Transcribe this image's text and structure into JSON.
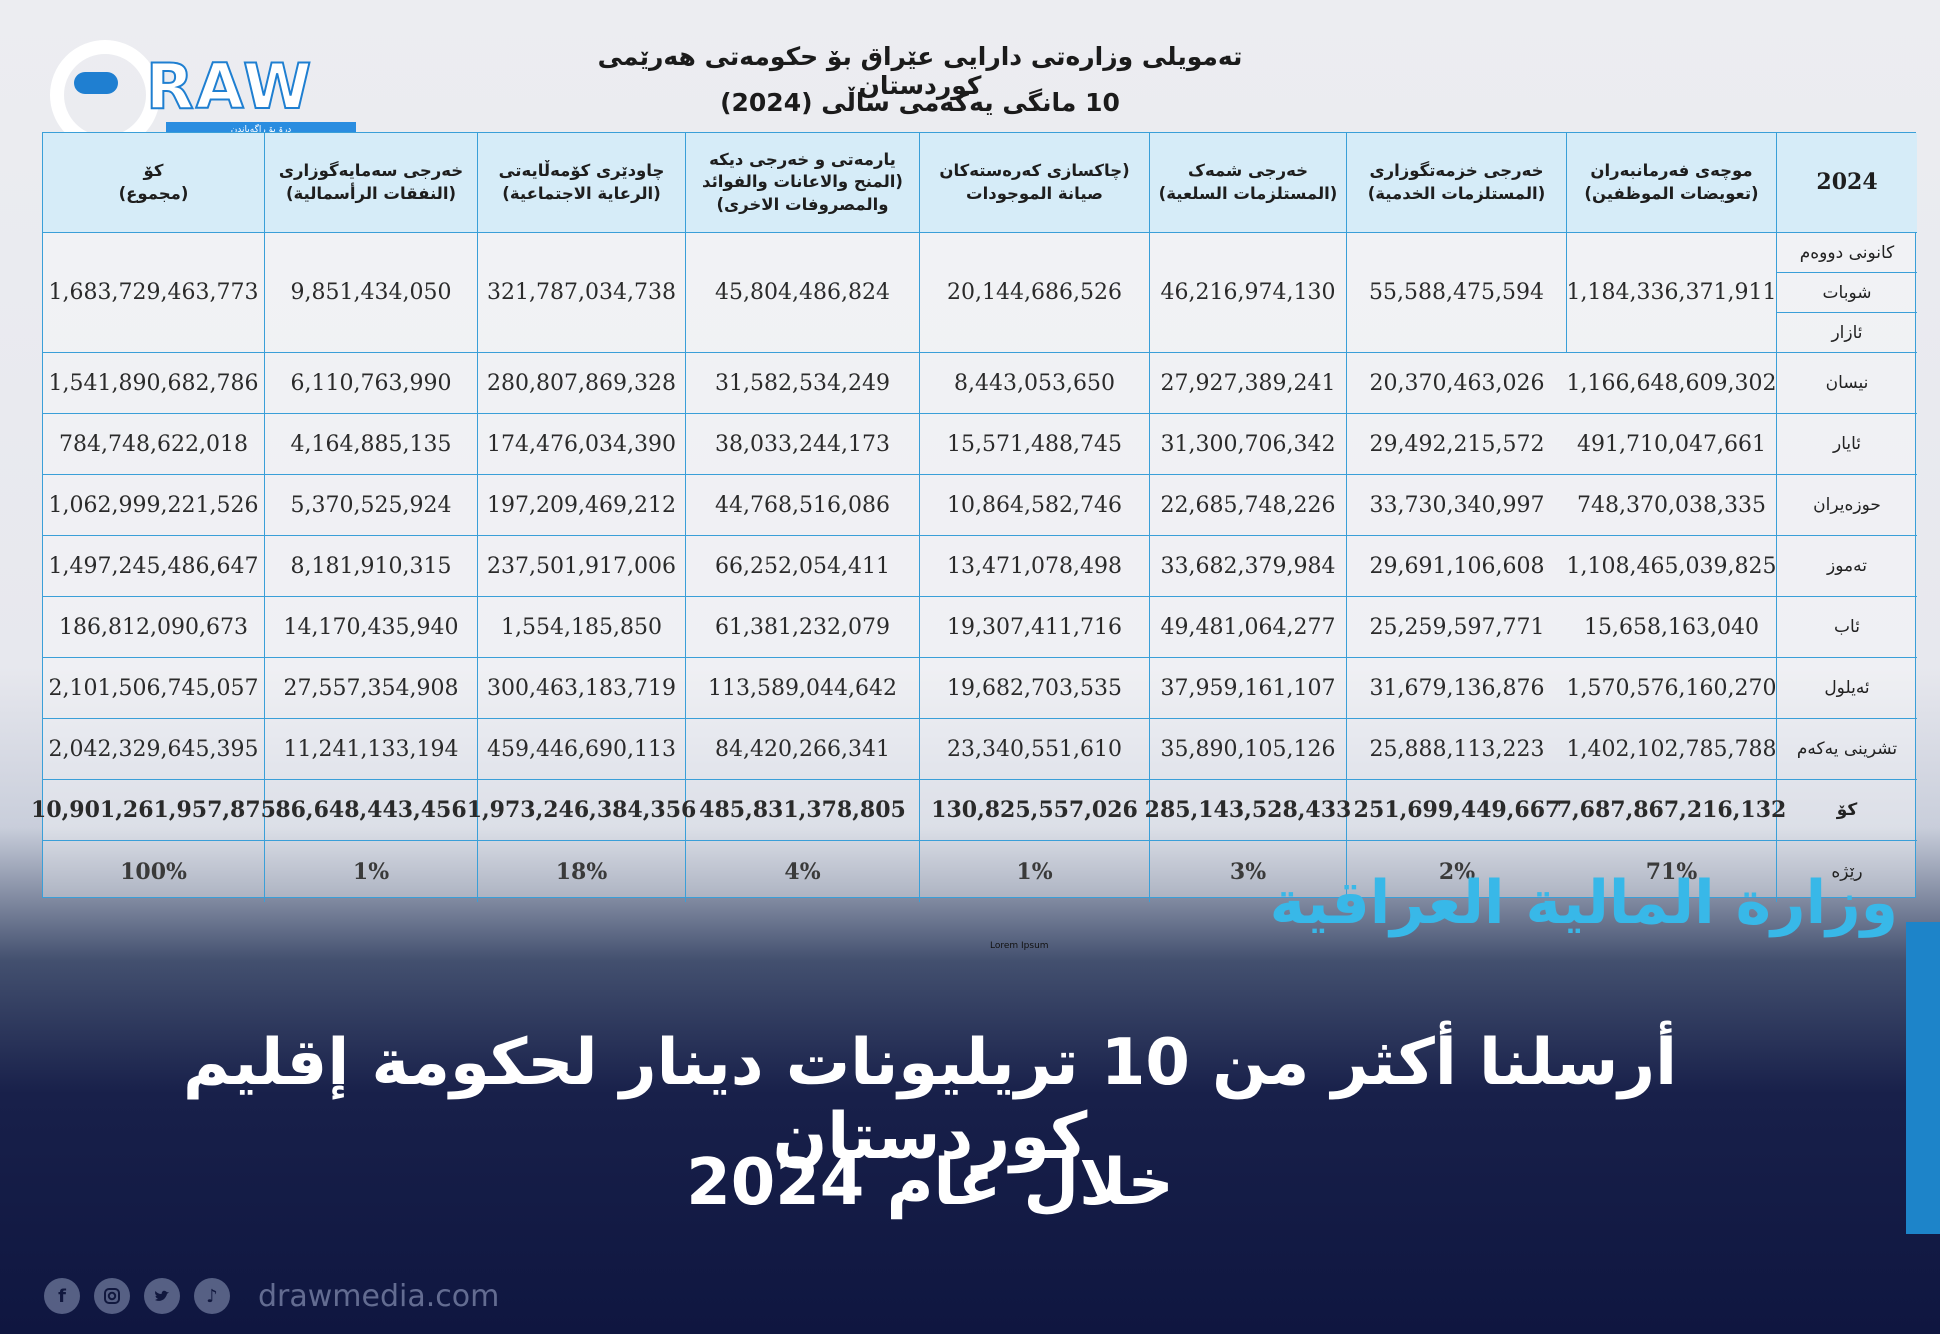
{
  "logo": {
    "wordmark": "RAW",
    "sub": "درۆ بۆ راگەیاندن"
  },
  "title_line1": "تەمویلی وزارەتی دارایی عێراق بۆ حکومەتی هەرێمی کوردستان",
  "title_line2": "10 مانگی یەکەمی ساڵی (2024)",
  "table": {
    "headers": [
      "کۆ\n(مجموع)",
      "خەرجی سەمایەگوزاری\n(النفقات الرأسمالية)",
      "چاودێری کۆمەڵایەتی\n(الرعاية الاجتماعية)",
      "یارمەتی و خەرجی دیکە\n(المنح والاعانات والفوائد\nوالمصروفات الاخرى)",
      "(چاکسازی کەرەستەکان\nصيانة الموجودات",
      "خەرجی شمەک\n(المستلزمات السلعية)",
      "خەرجی خزمەتگوزاری\n(المستلزمات الخدمية)",
      "موچەی فەرمانبەران\n(تعويضات الموظفين)",
      "2024"
    ],
    "q1_months": [
      "کانونی دووەم",
      "شوبات",
      "ئازار"
    ],
    "q1_values": [
      "1,683,729,463,773",
      "9,851,434,050",
      "321,787,034,738",
      "45,804,486,824",
      "20,144,686,526",
      "46,216,974,130",
      "55,588,475,594",
      "1,184,336,371,911"
    ],
    "rows": [
      {
        "month": "نیسان",
        "values": [
          "1,541,890,682,786",
          "6,110,763,990",
          "280,807,869,328",
          "31,582,534,249",
          "8,443,053,650",
          "27,927,389,241",
          "20,370,463,026",
          "1,166,648,609,302"
        ]
      },
      {
        "month": "ئایار",
        "values": [
          "784,748,622,018",
          "4,164,885,135",
          "174,476,034,390",
          "38,033,244,173",
          "15,571,488,745",
          "31,300,706,342",
          "29,492,215,572",
          "491,710,047,661"
        ]
      },
      {
        "month": "حوزەیران",
        "values": [
          "1,062,999,221,526",
          "5,370,525,924",
          "197,209,469,212",
          "44,768,516,086",
          "10,864,582,746",
          "22,685,748,226",
          "33,730,340,997",
          "748,370,038,335"
        ]
      },
      {
        "month": "تەموز",
        "values": [
          "1,497,245,486,647",
          "8,181,910,315",
          "237,501,917,006",
          "66,252,054,411",
          "13,471,078,498",
          "33,682,379,984",
          "29,691,106,608",
          "1,108,465,039,825"
        ]
      },
      {
        "month": "ئاب",
        "values": [
          "186,812,090,673",
          "14,170,435,940",
          "1,554,185,850",
          "61,381,232,079",
          "19,307,411,716",
          "49,481,064,277",
          "25,259,597,771",
          "15,658,163,040"
        ]
      },
      {
        "month": "ئەیلول",
        "values": [
          "2,101,506,745,057",
          "27,557,354,908",
          "300,463,183,719",
          "113,589,044,642",
          "19,682,703,535",
          "37,959,161,107",
          "31,679,136,876",
          "1,570,576,160,270"
        ]
      },
      {
        "month": "تشرینی یەکەم",
        "values": [
          "2,042,329,645,395",
          "11,241,133,194",
          "459,446,690,113",
          "84,420,266,341",
          "23,340,551,610",
          "35,890,105,126",
          "25,888,113,223",
          "1,402,102,785,788"
        ]
      }
    ],
    "total": {
      "label": "کۆ",
      "values": [
        "10,901,261,957,875",
        "86,648,443,456",
        "1,973,246,384,356",
        "485,831,378,805",
        "130,825,557,026",
        "285,143,528,433",
        "251,699,449,667",
        "7,687,867,216,132"
      ]
    },
    "ratio": {
      "label": "رێژە",
      "values": [
        "100%",
        "1%",
        "18%",
        "4%",
        "1%",
        "3%",
        "2%",
        "71%"
      ]
    }
  },
  "ministry": "وزارة المالية العراقية",
  "lorem": "Lorem Ipsum",
  "headline_line1": "أرسلنا أكثر من 10 تريليونات دينار لحكومة إقليم كوردستان",
  "headline_line2": "خلال عام 2024",
  "footer": {
    "icons": [
      "facebook-icon",
      "instagram-icon",
      "twitter-icon",
      "tiktok-icon"
    ],
    "site": "drawmedia.com"
  },
  "colors": {
    "table_border": "#3a9fd8",
    "header_bg": "#d6ecf8",
    "ministry": "#38b8e8",
    "navy": "#0f1640"
  }
}
